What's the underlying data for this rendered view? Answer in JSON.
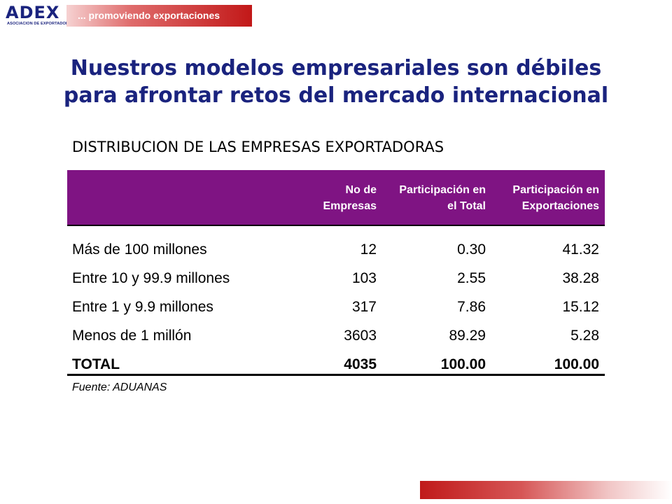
{
  "header": {
    "logo_text": "ADEX",
    "logo_subtitle": "ASOCIACION DE EXPORTADORES",
    "slogan": "... promoviendo  exportaciones"
  },
  "title_lines": [
    "Nuestros modelos empresariales son débiles",
    "para afrontar retos del mercado internacional"
  ],
  "table": {
    "title": "DISTRIBUCION DE LAS EMPRESAS EXPORTADORAS",
    "columns": [
      {
        "lines": [
          "",
          ""
        ]
      },
      {
        "lines": [
          "No de",
          "Empresas"
        ]
      },
      {
        "lines": [
          "Participación en",
          "el Total"
        ]
      },
      {
        "lines": [
          "Participación en",
          "Exportaciones"
        ]
      }
    ],
    "rows": [
      {
        "label": "Más de 100 millones",
        "empresas": "12",
        "participacion_total": "0.30",
        "participacion_exportaciones": "41.32"
      },
      {
        "label": "Entre 10 y 99.9 millones",
        "empresas": "103",
        "participacion_total": "2.55",
        "participacion_exportaciones": "38.28"
      },
      {
        "label": "Entre 1 y 9.9 millones",
        "empresas": "317",
        "participacion_total": "7.86",
        "participacion_exportaciones": "15.12"
      },
      {
        "label": "Menos de 1 millón",
        "empresas": "3603",
        "participacion_total": "89.29",
        "participacion_exportaciones": "5.28"
      }
    ],
    "total": {
      "label": "TOTAL",
      "empresas": "4035",
      "participacion_total": "100.00",
      "participacion_exportaciones": "100.00"
    },
    "source": "Fuente: ADUANAS"
  },
  "colors": {
    "title": "#1a237e",
    "header_bg": "#7f1483",
    "accent_red": "#c21818"
  }
}
